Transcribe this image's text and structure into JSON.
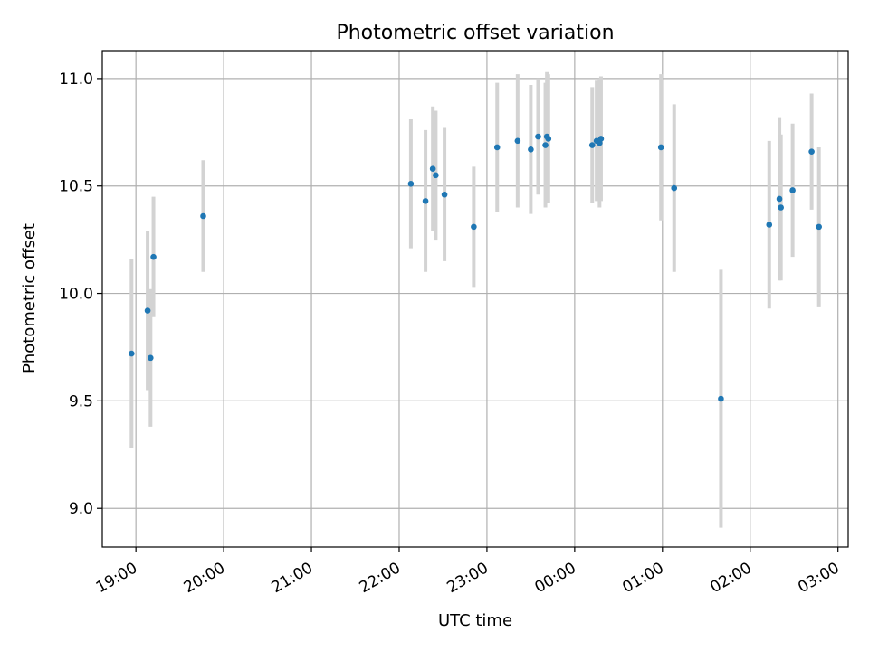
{
  "chart_data": {
    "type": "scatter",
    "title": "Photometric offset variation",
    "xlabel": "UTC time",
    "ylabel": "Photometric offset",
    "x_axis": "time (UTC)",
    "xlim": [
      "18:37",
      "03:07"
    ],
    "ylim": [
      8.82,
      11.13
    ],
    "xticks": [
      "19:00",
      "20:00",
      "21:00",
      "22:00",
      "23:00",
      "00:00",
      "01:00",
      "02:00",
      "03:00"
    ],
    "yticks": [
      "9.0",
      "9.5",
      "10.0",
      "10.5",
      "11.0"
    ],
    "ytick_values": [
      9.0,
      9.5,
      10.0,
      10.5,
      11.0
    ],
    "grid": true,
    "colors": {
      "point": "#1f77b4",
      "errorbar": "#d3d3d3"
    },
    "points": [
      {
        "time": "18:57",
        "y": 9.72,
        "err": 0.44
      },
      {
        "time": "19:08",
        "y": 9.92,
        "err": 0.37
      },
      {
        "time": "19:10",
        "y": 9.7,
        "err": 0.32
      },
      {
        "time": "19:12",
        "y": 10.17,
        "err": 0.28
      },
      {
        "time": "19:46",
        "y": 10.36,
        "err": 0.26
      },
      {
        "time": "22:08",
        "y": 10.51,
        "err": 0.3
      },
      {
        "time": "22:18",
        "y": 10.43,
        "err": 0.33
      },
      {
        "time": "22:23",
        "y": 10.58,
        "err": 0.29
      },
      {
        "time": "22:25",
        "y": 10.55,
        "err": 0.3
      },
      {
        "time": "22:31",
        "y": 10.46,
        "err": 0.31
      },
      {
        "time": "22:51",
        "y": 10.31,
        "err": 0.28
      },
      {
        "time": "23:07",
        "y": 10.68,
        "err": 0.3
      },
      {
        "time": "23:21",
        "y": 10.71,
        "err": 0.31
      },
      {
        "time": "23:30",
        "y": 10.67,
        "err": 0.3
      },
      {
        "time": "23:35",
        "y": 10.73,
        "err": 0.27
      },
      {
        "time": "23:40",
        "y": 10.69,
        "err": 0.29
      },
      {
        "time": "23:41",
        "y": 10.73,
        "err": 0.3
      },
      {
        "time": "23:42",
        "y": 10.72,
        "err": 0.3
      },
      {
        "time": "00:12",
        "y": 10.69,
        "err": 0.27
      },
      {
        "time": "00:15",
        "y": 10.71,
        "err": 0.28
      },
      {
        "time": "00:17",
        "y": 10.7,
        "err": 0.3
      },
      {
        "time": "00:18",
        "y": 10.72,
        "err": 0.29
      },
      {
        "time": "00:59",
        "y": 10.68,
        "err": 0.34
      },
      {
        "time": "01:08",
        "y": 10.49,
        "err": 0.39
      },
      {
        "time": "01:40",
        "y": 9.51,
        "err": 0.6
      },
      {
        "time": "02:13",
        "y": 10.32,
        "err": 0.39
      },
      {
        "time": "02:20",
        "y": 10.44,
        "err": 0.38
      },
      {
        "time": "02:21",
        "y": 10.4,
        "err": 0.34
      },
      {
        "time": "02:29",
        "y": 10.48,
        "err": 0.31
      },
      {
        "time": "02:42",
        "y": 10.66,
        "err": 0.27
      },
      {
        "time": "02:47",
        "y": 10.31,
        "err": 0.37
      }
    ]
  }
}
